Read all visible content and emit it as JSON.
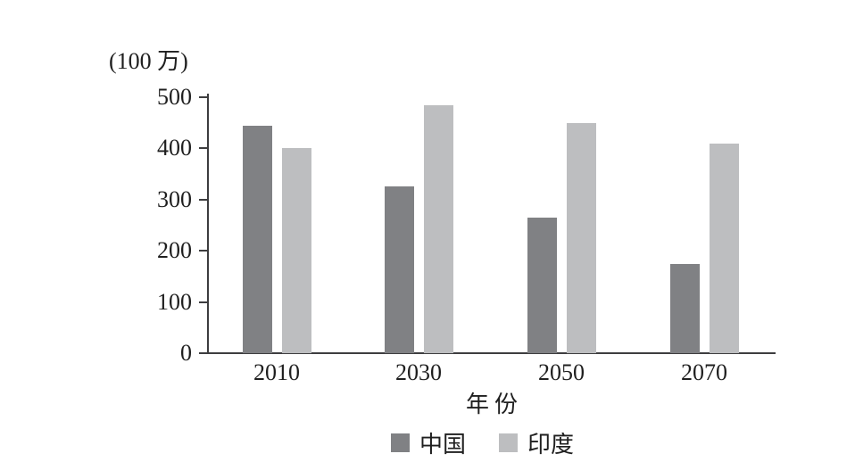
{
  "chart_data": {
    "type": "bar",
    "title": "",
    "unit_label": "(100 万)",
    "xlabel": "年份",
    "ylabel": "",
    "categories": [
      "2010",
      "2030",
      "2050",
      "2070"
    ],
    "series": [
      {
        "key": "china",
        "name": "中国",
        "color": "#808184",
        "values": [
          445,
          325,
          265,
          175
        ]
      },
      {
        "key": "india",
        "name": "印度",
        "color": "#bdbec0",
        "values": [
          400,
          485,
          450,
          410
        ]
      }
    ],
    "ylim": [
      0,
      500
    ],
    "yticks": [
      0,
      100,
      200,
      300,
      400,
      500
    ],
    "grid": false,
    "legend_position": "bottom",
    "axis_color": "#3d3d3f",
    "text_color": "#1f1f1f",
    "background_color": "#ffffff"
  }
}
